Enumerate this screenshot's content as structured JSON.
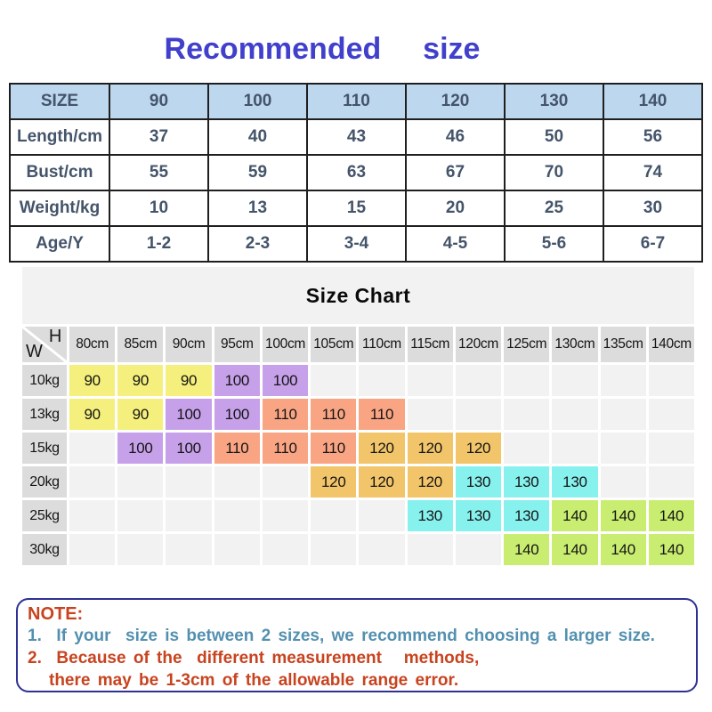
{
  "title": "Recommended  size",
  "size_table": {
    "header": [
      "SIZE",
      "90",
      "100",
      "110",
      "120",
      "130",
      "140"
    ],
    "rows": [
      {
        "label": "Length/cm",
        "values": [
          "37",
          "40",
          "43",
          "46",
          "50",
          "56"
        ]
      },
      {
        "label": "Bust/cm",
        "values": [
          "55",
          "59",
          "63",
          "67",
          "70",
          "74"
        ]
      },
      {
        "label": "Weight/kg",
        "values": [
          "10",
          "13",
          "15",
          "20",
          "25",
          "30"
        ]
      },
      {
        "label": "Age/Y",
        "values": [
          "1-2",
          "2-3",
          "3-4",
          "4-5",
          "5-6",
          "6-7"
        ]
      }
    ]
  },
  "size_chart": {
    "title": "Size Chart",
    "corner": {
      "top": "H",
      "bottom": "W"
    },
    "columns": [
      "80cm",
      "85cm",
      "90cm",
      "95cm",
      "100cm",
      "105cm",
      "110cm",
      "115cm",
      "120cm",
      "125cm",
      "130cm",
      "135cm",
      "140cm"
    ],
    "palette": {
      "yellow": "#F5F07D",
      "purple": "#C6A1E9",
      "salmon": "#F9A584",
      "orange": "#F2C56A",
      "cyan": "#87F1EE",
      "green": "#C9ED70"
    },
    "rows": [
      {
        "label": "10kg",
        "cells": [
          {
            "v": "90",
            "c": "yellow"
          },
          {
            "v": "90",
            "c": "yellow"
          },
          {
            "v": "90",
            "c": "yellow"
          },
          {
            "v": "100",
            "c": "purple"
          },
          {
            "v": "100",
            "c": "purple"
          },
          null,
          null,
          null,
          null,
          null,
          null,
          null,
          null
        ]
      },
      {
        "label": "13kg",
        "cells": [
          {
            "v": "90",
            "c": "yellow"
          },
          {
            "v": "90",
            "c": "yellow"
          },
          {
            "v": "100",
            "c": "purple"
          },
          {
            "v": "100",
            "c": "purple"
          },
          {
            "v": "110",
            "c": "salmon"
          },
          {
            "v": "110",
            "c": "salmon"
          },
          {
            "v": "110",
            "c": "salmon"
          },
          null,
          null,
          null,
          null,
          null,
          null
        ]
      },
      {
        "label": "15kg",
        "cells": [
          null,
          {
            "v": "100",
            "c": "purple"
          },
          {
            "v": "100",
            "c": "purple"
          },
          {
            "v": "110",
            "c": "salmon"
          },
          {
            "v": "110",
            "c": "salmon"
          },
          {
            "v": "110",
            "c": "salmon"
          },
          {
            "v": "120",
            "c": "orange"
          },
          {
            "v": "120",
            "c": "orange"
          },
          {
            "v": "120",
            "c": "orange"
          },
          null,
          null,
          null,
          null
        ]
      },
      {
        "label": "20kg",
        "cells": [
          null,
          null,
          null,
          null,
          null,
          {
            "v": "120",
            "c": "orange"
          },
          {
            "v": "120",
            "c": "orange"
          },
          {
            "v": "120",
            "c": "orange"
          },
          {
            "v": "130",
            "c": "cyan"
          },
          {
            "v": "130",
            "c": "cyan"
          },
          {
            "v": "130",
            "c": "cyan"
          },
          null,
          null
        ]
      },
      {
        "label": "25kg",
        "cells": [
          null,
          null,
          null,
          null,
          null,
          null,
          null,
          {
            "v": "130",
            "c": "cyan"
          },
          {
            "v": "130",
            "c": "cyan"
          },
          {
            "v": "130",
            "c": "cyan"
          },
          {
            "v": "140",
            "c": "green"
          },
          {
            "v": "140",
            "c": "green"
          },
          {
            "v": "140",
            "c": "green"
          }
        ]
      },
      {
        "label": "30kg",
        "cells": [
          null,
          null,
          null,
          null,
          null,
          null,
          null,
          null,
          null,
          {
            "v": "140",
            "c": "green"
          },
          {
            "v": "140",
            "c": "green"
          },
          {
            "v": "140",
            "c": "green"
          },
          {
            "v": "140",
            "c": "green"
          }
        ]
      }
    ]
  },
  "note": {
    "heading": "NOTE:",
    "lines": [
      {
        "text": "1.  If your  size is between 2 sizes, we recommend choosing a larger size.",
        "color": "blue",
        "indent": false
      },
      {
        "text": "2.  Because of the  different measurement   methods,",
        "color": "red",
        "indent": false
      },
      {
        "text": "there may be 1-3cm of the allowable range error.",
        "color": "red",
        "indent": true
      }
    ]
  },
  "colors": {
    "title_blue": "#4040CC",
    "table_header_bg": "#BDD7EE",
    "table_text": "#44546A",
    "table_border": "#1f1f1f",
    "chart_band_bg": "#F2F2F2",
    "chart_head_bg": "#DCDCDC",
    "chart_empty_bg": "#F2F2F2",
    "note_border": "#2E3192",
    "note_red": "#C8431F",
    "note_blue": "#5390AF"
  }
}
